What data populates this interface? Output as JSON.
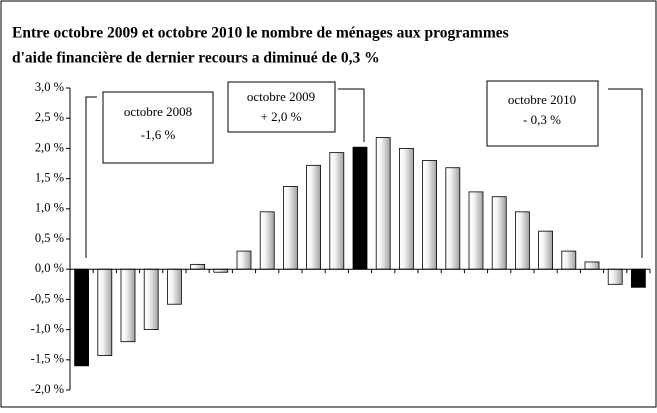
{
  "chart_data": {
    "type": "bar",
    "title": [
      "Entre octobre 2009 et octobre 2010 le nombre de ménages aux programmes",
      "d'aide financière de dernier recours a diminué de 0,3 %"
    ],
    "categories": [
      null,
      null,
      null,
      null,
      null,
      null,
      null,
      null,
      null,
      null,
      null,
      null,
      null,
      null,
      null,
      null,
      null,
      null,
      null,
      null,
      null,
      null,
      null,
      null,
      null
    ],
    "values": [
      -1.6,
      -1.43,
      -1.2,
      -1.0,
      -0.58,
      0.08,
      -0.05,
      0.3,
      0.95,
      1.37,
      1.72,
      1.93,
      2.02,
      2.18,
      2.0,
      1.8,
      1.68,
      1.28,
      1.2,
      0.95,
      0.63,
      0.3,
      0.12,
      -0.25,
      -0.3
    ],
    "colors": [
      "#000000",
      "#a0a0a0",
      "#a0a0a0",
      "#a0a0a0",
      "#a0a0a0",
      "#a0a0a0",
      "#a0a0a0",
      "#a0a0a0",
      "#a0a0a0",
      "#a0a0a0",
      "#a0a0a0",
      "#a0a0a0",
      "#000000",
      "#a0a0a0",
      "#a0a0a0",
      "#a0a0a0",
      "#a0a0a0",
      "#a0a0a0",
      "#a0a0a0",
      "#a0a0a0",
      "#a0a0a0",
      "#a0a0a0",
      "#a0a0a0",
      "#a0a0a0",
      "#000000"
    ],
    "ylim": [
      -2.0,
      3.0
    ],
    "yticks": [
      {
        "value": -2.0,
        "label": "-2,0 %"
      },
      {
        "value": -1.5,
        "label": "-1,5 %"
      },
      {
        "value": -1.0,
        "label": "-1,0 %"
      },
      {
        "value": -0.5,
        "label": "-0,5 %"
      },
      {
        "value": 0.0,
        "label": "0,0 %"
      },
      {
        "value": 0.5,
        "label": "0,5 %"
      },
      {
        "value": 1.0,
        "label": "1,0 %"
      },
      {
        "value": 1.5,
        "label": "1,5 %"
      },
      {
        "value": 2.0,
        "label": "2,0 %"
      },
      {
        "value": 2.5,
        "label": "2,5 %"
      },
      {
        "value": 3.0,
        "label": "3,0 %"
      }
    ],
    "annotations": [
      {
        "lines": [
          "octobre 2008",
          "-1,6 %"
        ]
      },
      {
        "lines": [
          "octobre 2009",
          "+ 2,0 %"
        ]
      },
      {
        "lines": [
          "octobre 2010",
          "- 0,3 %"
        ]
      }
    ]
  }
}
